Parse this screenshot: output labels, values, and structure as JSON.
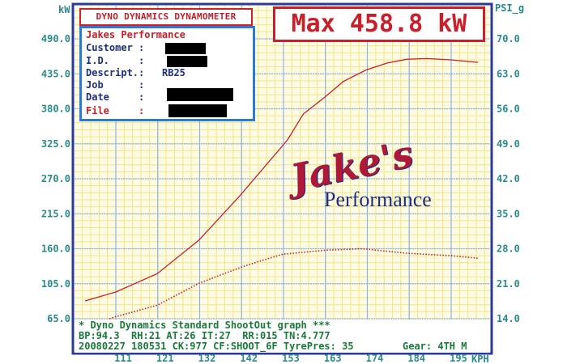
{
  "chart_data": {
    "type": "line",
    "xlabel": "KPH",
    "ylabel": "kW",
    "y2label": "PSI_g",
    "x_ticks": [
      "111",
      "121",
      "132",
      "142",
      "153",
      "163",
      "174",
      "184",
      "195"
    ],
    "y_ticks": [
      "490.0",
      "435.0",
      "380.0",
      "325.0",
      "270.0",
      "215.0",
      "160.0",
      "105.0",
      "65.0"
    ],
    "y2_ticks": [
      "70.0",
      "63.0",
      "56.0",
      "49.0",
      "42.0",
      "35.0",
      "28.0",
      "21.0",
      "14.0"
    ],
    "xlim": [
      101,
      205
    ],
    "ylim": [
      50,
      490
    ],
    "y2lim": [
      14,
      70
    ],
    "grid": true,
    "series": [
      {
        "axis": "left",
        "style": "solid",
        "color": "#c8202a",
        "x": [
          103.3,
          111,
          121.4,
          131.9,
          142.3,
          154,
          158,
          163.3,
          168,
          173.7,
          179,
          184,
          188.9,
          195,
          201.7
        ],
        "y": [
          78,
          92,
          121,
          174,
          245,
          331,
          372,
          398,
          423,
          441,
          452,
          458,
          459,
          457,
          453
        ]
      },
      {
        "axis": "right",
        "style": "dotted",
        "color": "#c8202a",
        "x": [
          109.4,
          111,
          121.4,
          131.9,
          142.3,
          149,
          152.8,
          163.3,
          172.7,
          184,
          195,
          201.7
        ],
        "y": [
          14,
          14.4,
          16.7,
          21.1,
          24.3,
          26,
          26.9,
          27.7,
          28.0,
          27.1,
          26.6,
          26.1
        ]
      }
    ]
  },
  "header": {
    "title": "DYNO DYNAMICS DYNAMOMETER",
    "max": "Max 458.8 kW"
  },
  "info": {
    "shop": "Jakes Performance",
    "customer_label": "Customer :",
    "id_label": "I.D.     :",
    "descript_label": "Descript.:",
    "descript_value": "RB25",
    "job_label": "Job      :",
    "date_label": "Date     :",
    "file_label": "File     :"
  },
  "logo": {
    "script": "Jake's",
    "sub": "Performance"
  },
  "footer": {
    "line1": "* Dyno Dynamics Standard ShootOut graph ***",
    "line2": "BP:94.3  RH:21 AT:26 IT:27  RR:015 TN:4.777",
    "line3": "20080227 180531 CK:977 CF:SHOOT_6F TyrePres: 35",
    "gear": "Gear: 4TH M"
  },
  "colors": {
    "power": "#c8202a",
    "axis_text": "#2a8a8a",
    "frame": "#2a3a9a",
    "major_grid": "#8db4e0",
    "minor_grid": "#f2e680",
    "background": "#fdfbe6"
  }
}
